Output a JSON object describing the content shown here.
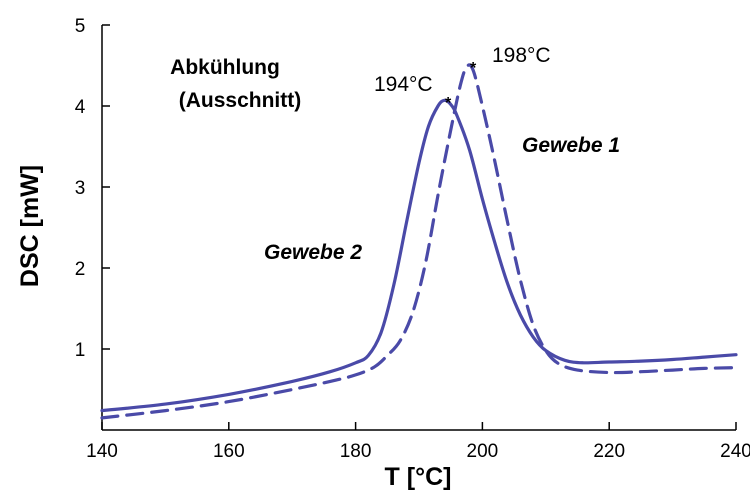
{
  "chart_data": {
    "type": "line",
    "title": "",
    "xlabel": "T [°C]",
    "ylabel": "DSC [mW]",
    "xlim": [
      140,
      240
    ],
    "ylim": [
      0,
      5
    ],
    "x_ticks": [
      140,
      160,
      180,
      200,
      220,
      240
    ],
    "y_ticks": [
      1,
      2,
      3,
      4,
      5
    ],
    "grid": false,
    "legend": "none",
    "annotations": [
      {
        "text": "Abkühlung",
        "style": "bold"
      },
      {
        "text": "(Ausschnitt)",
        "style": "bold"
      },
      {
        "text": "194°C",
        "style": "plain"
      },
      {
        "text": "198°C",
        "style": "plain"
      },
      {
        "text": "Gewebe 1",
        "style": "bold-italic"
      },
      {
        "text": "Gewebe 2",
        "style": "bold-italic"
      },
      {
        "text": "*",
        "style": "peak-marker"
      },
      {
        "text": "*",
        "style": "peak-marker"
      }
    ],
    "series": [
      {
        "label": "Gewebe 2",
        "style": "solid",
        "color": "#4a4aa8",
        "points": [
          [
            140,
            0.24
          ],
          [
            150,
            0.32
          ],
          [
            160,
            0.44
          ],
          [
            170,
            0.6
          ],
          [
            176,
            0.72
          ],
          [
            180,
            0.83
          ],
          [
            182,
            0.92
          ],
          [
            184,
            1.2
          ],
          [
            186,
            1.78
          ],
          [
            188,
            2.55
          ],
          [
            190,
            3.3
          ],
          [
            191.5,
            3.75
          ],
          [
            193,
            4.0
          ],
          [
            194,
            4.07
          ],
          [
            195,
            4.02
          ],
          [
            196,
            3.88
          ],
          [
            198,
            3.45
          ],
          [
            200,
            2.85
          ],
          [
            202,
            2.3
          ],
          [
            204,
            1.8
          ],
          [
            206,
            1.42
          ],
          [
            208,
            1.15
          ],
          [
            210,
            0.98
          ],
          [
            213,
            0.86
          ],
          [
            216,
            0.83
          ],
          [
            220,
            0.84
          ],
          [
            225,
            0.85
          ],
          [
            230,
            0.87
          ],
          [
            235,
            0.9
          ],
          [
            240,
            0.93
          ]
        ]
      },
      {
        "label": "Gewebe 1",
        "style": "dashed",
        "color": "#4a4aa8",
        "points": [
          [
            140,
            0.15
          ],
          [
            150,
            0.24
          ],
          [
            160,
            0.35
          ],
          [
            170,
            0.5
          ],
          [
            176,
            0.6
          ],
          [
            180,
            0.68
          ],
          [
            183,
            0.78
          ],
          [
            185,
            0.92
          ],
          [
            187,
            1.1
          ],
          [
            189,
            1.45
          ],
          [
            191,
            2.05
          ],
          [
            193,
            2.9
          ],
          [
            195,
            3.7
          ],
          [
            196.5,
            4.25
          ],
          [
            197.5,
            4.48
          ],
          [
            198.5,
            4.45
          ],
          [
            200,
            4.0
          ],
          [
            202,
            3.3
          ],
          [
            204,
            2.55
          ],
          [
            206,
            1.85
          ],
          [
            208,
            1.3
          ],
          [
            210,
            0.98
          ],
          [
            212,
            0.82
          ],
          [
            215,
            0.74
          ],
          [
            220,
            0.71
          ],
          [
            225,
            0.72
          ],
          [
            230,
            0.74
          ],
          [
            235,
            0.76
          ],
          [
            240,
            0.77
          ]
        ]
      }
    ]
  }
}
